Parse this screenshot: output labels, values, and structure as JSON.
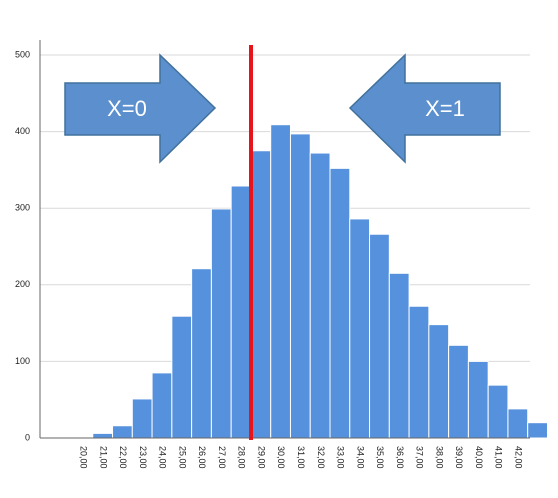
{
  "chart_data": {
    "type": "bar",
    "categories": [
      "20,00",
      "21,00",
      "22,00",
      "23,00",
      "24,00",
      "25,00",
      "26,00",
      "27,00",
      "28,00",
      "29,00",
      "30,00",
      "31,00",
      "32,00",
      "33,00",
      "34,00",
      "35,00",
      "36,00",
      "37,00",
      "38,00",
      "39,00",
      "40,00",
      "41,00",
      "42,00",
      null
    ],
    "values": [
      1,
      6,
      16,
      51,
      85,
      159,
      221,
      299,
      329,
      375,
      409,
      397,
      372,
      352,
      286,
      266,
      215,
      172,
      148,
      121,
      100,
      69,
      38,
      20
    ],
    "color": "#5591dd",
    "ylim": [
      0,
      500
    ],
    "yticks": [
      0,
      100,
      200,
      300,
      400,
      500
    ],
    "grid": true,
    "annotations": [
      "X=0",
      "X=1"
    ]
  }
}
